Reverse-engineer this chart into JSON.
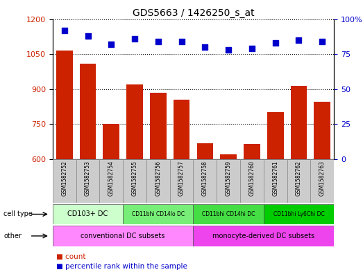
{
  "title": "GDS5663 / 1426250_s_at",
  "samples": [
    "GSM1582752",
    "GSM1582753",
    "GSM1582754",
    "GSM1582755",
    "GSM1582756",
    "GSM1582757",
    "GSM1582758",
    "GSM1582759",
    "GSM1582760",
    "GSM1582761",
    "GSM1582762",
    "GSM1582763"
  ],
  "counts": [
    1065,
    1010,
    750,
    920,
    885,
    855,
    668,
    620,
    665,
    800,
    915,
    845
  ],
  "percentiles": [
    92,
    88,
    82,
    86,
    84,
    84,
    80,
    78,
    79,
    83,
    85,
    84
  ],
  "ylim_left": [
    600,
    1200
  ],
  "ylim_right": [
    0,
    100
  ],
  "yticks_left": [
    600,
    750,
    900,
    1050,
    1200
  ],
  "yticks_right": [
    0,
    25,
    50,
    75,
    100
  ],
  "bar_color": "#cc2200",
  "dot_color": "#0000cc",
  "background_color": "#ffffff",
  "cell_types": [
    {
      "label": "CD103+ DC",
      "start": 0,
      "end": 2,
      "color": "#ccffcc"
    },
    {
      "label": "CD11bhi CD14lo DC",
      "start": 3,
      "end": 5,
      "color": "#77ee77"
    },
    {
      "label": "CD11bhi CD14hi DC",
      "start": 6,
      "end": 8,
      "color": "#44dd44"
    },
    {
      "label": "CD11bhi Ly6Chi DC",
      "start": 9,
      "end": 11,
      "color": "#00cc00"
    }
  ],
  "other_groups": [
    {
      "label": "conventional DC subsets",
      "start": 0,
      "end": 5,
      "color": "#ff88ff"
    },
    {
      "label": "monocyte-derived DC subsets",
      "start": 6,
      "end": 11,
      "color": "#ee44ee"
    }
  ],
  "cell_type_row_label": "cell type",
  "other_row_label": "other",
  "legend_count_label": "count",
  "legend_percentile_label": "percentile rank within the sample"
}
